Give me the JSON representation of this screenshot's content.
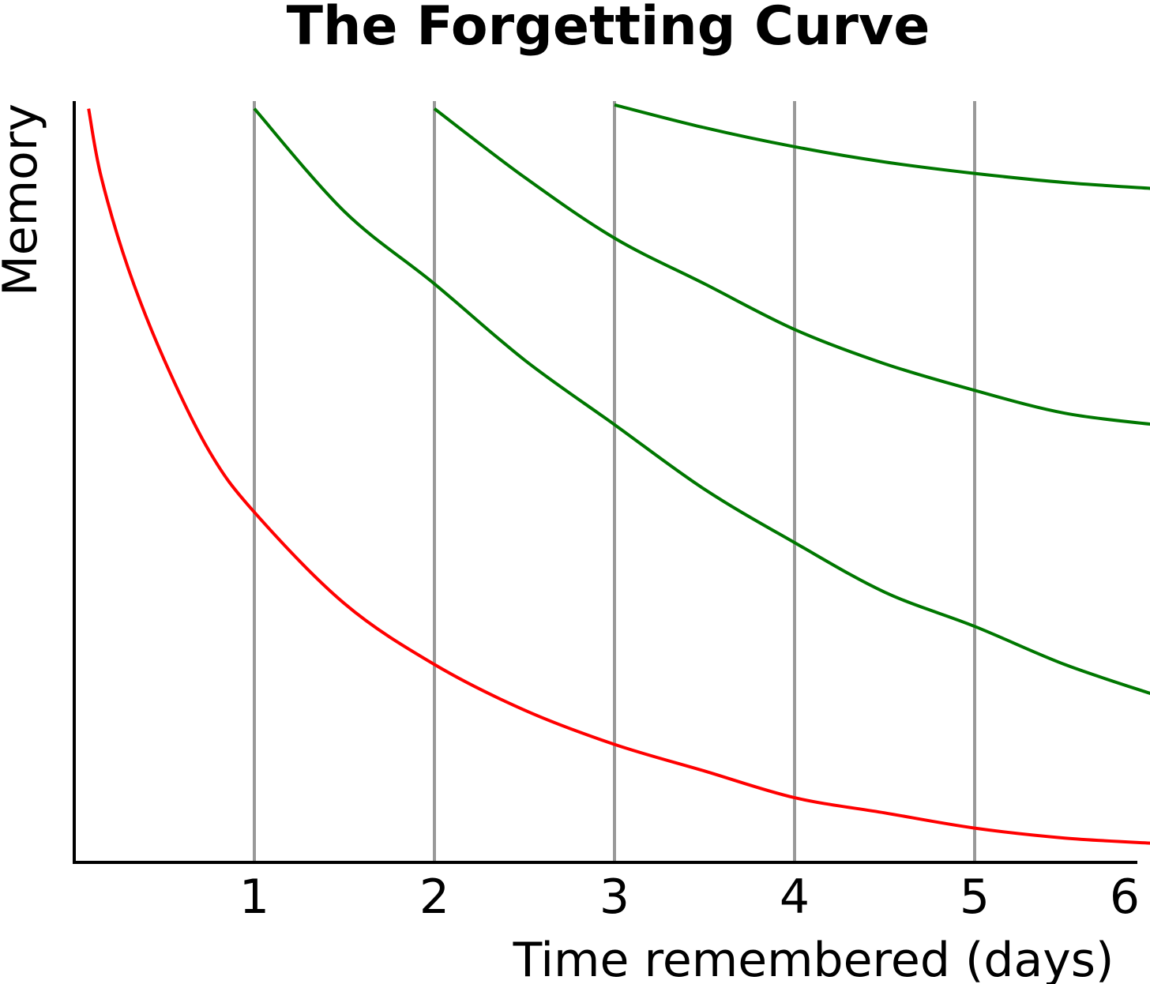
{
  "chart_data": {
    "type": "line",
    "title": "The Forgetting Curve",
    "xlabel": "Time remembered (days)",
    "ylabel": "Memory",
    "xlim": [
      0,
      6
    ],
    "ylim": [
      0,
      1
    ],
    "x_ticks": [
      "1",
      "2",
      "3",
      "4",
      "5",
      "6"
    ],
    "grid": "vertical",
    "series": [
      {
        "color": "#ff0000",
        "x": [
          0.08,
          0.15,
          0.3,
          0.5,
          0.75,
          1.0,
          1.5,
          2.0,
          2.5,
          3.0,
          3.5,
          4.0,
          4.5,
          5.0,
          5.5,
          6.0
        ],
        "y": [
          0.99,
          0.9,
          0.78,
          0.66,
          0.54,
          0.46,
          0.34,
          0.26,
          0.2,
          0.155,
          0.12,
          0.085,
          0.065,
          0.045,
          0.032,
          0.025
        ]
      },
      {
        "color": "#007700",
        "x": [
          1.0,
          1.5,
          2.0,
          2.5,
          3.0,
          3.5,
          4.0,
          4.5,
          5.0,
          5.5,
          6.0
        ],
        "y": [
          0.99,
          0.855,
          0.76,
          0.66,
          0.575,
          0.49,
          0.42,
          0.355,
          0.31,
          0.26,
          0.22
        ]
      },
      {
        "color": "#007700",
        "x": [
          2.0,
          2.5,
          3.0,
          3.5,
          4.0,
          4.5,
          5.0,
          5.5,
          6.0
        ],
        "y": [
          0.99,
          0.9,
          0.82,
          0.76,
          0.7,
          0.655,
          0.62,
          0.59,
          0.575
        ]
      },
      {
        "color": "#007700",
        "x": [
          3.0,
          3.5,
          4.0,
          4.5,
          5.0,
          5.5,
          6.0
        ],
        "y": [
          0.995,
          0.965,
          0.94,
          0.92,
          0.905,
          0.893,
          0.885
        ]
      }
    ],
    "colors": {
      "axis": "#000000",
      "gridline": "#999999"
    }
  }
}
